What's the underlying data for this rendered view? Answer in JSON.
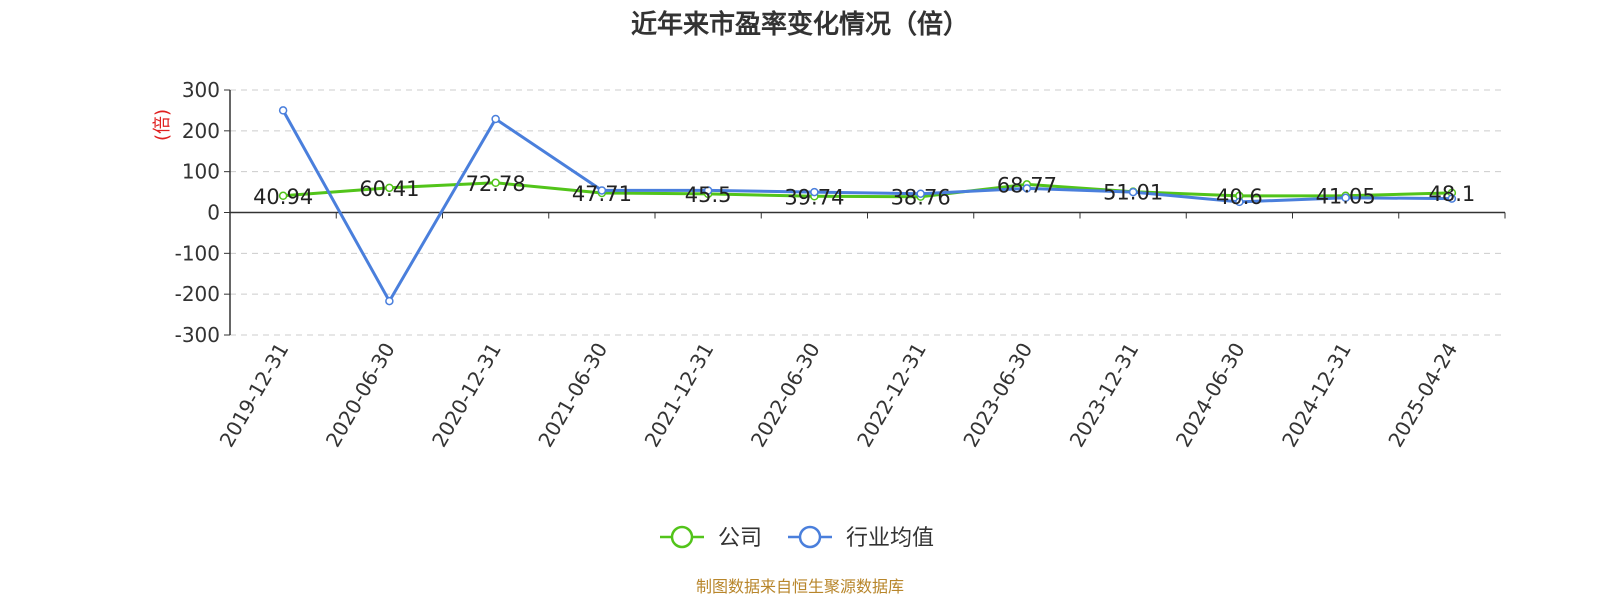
{
  "chart_data": {
    "type": "line",
    "title": "近年来市盈率变化情况（倍）",
    "ylabel": "(倍)",
    "xlabel": "",
    "ylim": [
      -300,
      300
    ],
    "yticks": [
      300,
      200,
      100,
      0,
      -100,
      -200,
      -300
    ],
    "grid": true,
    "legend_position": "bottom-center",
    "categories": [
      "2019-12-31",
      "2020-06-30",
      "2020-12-31",
      "2021-06-30",
      "2021-12-31",
      "2022-06-30",
      "2022-12-31",
      "2023-06-30",
      "2023-12-31",
      "2024-06-30",
      "2024-12-31",
      "2025-04-24"
    ],
    "series": [
      {
        "name": "公司",
        "color": "#52c41a",
        "values": [
          40.94,
          60.41,
          72.78,
          47.71,
          45.5,
          39.74,
          38.76,
          68.77,
          51.01,
          40.6,
          41.05,
          48.1
        ],
        "data_labels": [
          "40.94",
          "60.41",
          "72.78",
          "47.71",
          "45.5",
          "39.74",
          "38.76",
          "68.77",
          "51.01",
          "40.6",
          "41.05",
          "48.1"
        ]
      },
      {
        "name": "行业均值",
        "color": "#4a7fdc",
        "values": [
          250,
          -217,
          229,
          54,
          54,
          50,
          46,
          59,
          50,
          26,
          36,
          34
        ]
      }
    ]
  },
  "source": "制图数据来自恒生聚源数据库"
}
